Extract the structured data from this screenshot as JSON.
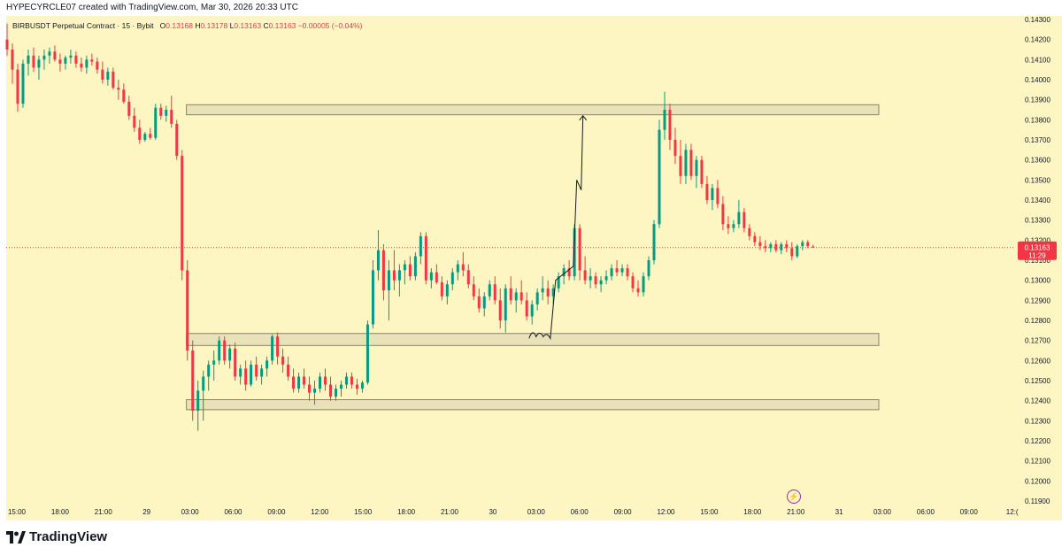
{
  "header": {
    "credit": "HYPECYRCLE07 created with TradingView.com, Mar 30, 2026 20:33 UTC"
  },
  "legend": {
    "symbol": "BIRBUSDT Perpetual Contract · 15 · Bybit",
    "o_label": "O",
    "o": "0.13168",
    "h_label": "H",
    "h": "0.13178",
    "l_label": "L",
    "l": "0.13163",
    "c_label": "C",
    "c": "0.13163",
    "change": "−0.00005 (−0.04%)"
  },
  "price_tag": {
    "price": "0.13163",
    "countdown": "11:29"
  },
  "footer": {
    "brand": "TradingView"
  },
  "colors": {
    "up": "#089981",
    "down": "#f23645",
    "zone_fill": "#e9e2b9",
    "zone_stroke": "#8a8466",
    "background": "#fdf6c3"
  },
  "chart_data": {
    "type": "candlestick",
    "y_ticks": [
      "0.14300",
      "0.14200",
      "0.14100",
      "0.14000",
      "0.13900",
      "0.13800",
      "0.13700",
      "0.13600",
      "0.13500",
      "0.13400",
      "0.13300",
      "0.13200",
      "0.13100",
      "0.13000",
      "0.12900",
      "0.12800",
      "0.12700",
      "0.12600",
      "0.12500",
      "0.12400",
      "0.12300",
      "0.12200",
      "0.12100",
      "0.12000",
      "0.11900"
    ],
    "ylim": [
      0.119,
      0.143
    ],
    "x_ticks": [
      "15:00",
      "18:00",
      "21:00",
      "29",
      "03:00",
      "06:00",
      "09:00",
      "12:00",
      "15:00",
      "18:00",
      "21:00",
      "30",
      "03:00",
      "06:00",
      "09:00",
      "12:00",
      "15:00",
      "18:00",
      "21:00",
      "31",
      "03:00",
      "06:00",
      "09:00",
      "12:("
    ],
    "current_price": 0.13163,
    "zones": [
      {
        "from_x": "03:00 (29)",
        "to_x": "03:00 (31)",
        "low": 0.13825,
        "high": 0.13875
      },
      {
        "from_x": "03:00 (29)",
        "to_x": "03:00 (31)",
        "low": 0.12675,
        "high": 0.12735
      },
      {
        "from_x": "03:00 (29)",
        "to_x": "03:00 (31)",
        "low": 0.12355,
        "high": 0.12405
      }
    ],
    "path_points": [
      [
        0.1271,
        0.12715
      ],
      [
        0.12725,
        0.12735
      ],
      [
        0.1272,
        0.13
      ],
      [
        0.135,
        0.1345
      ],
      [
        0.1382,
        0.1382
      ]
    ],
    "candles": [
      [
        0.142,
        0.1428,
        0.1412,
        0.1415
      ],
      [
        0.1415,
        0.1418,
        0.1398,
        0.1405
      ],
      [
        0.1405,
        0.1408,
        0.1384,
        0.1388
      ],
      [
        0.1388,
        0.141,
        0.1386,
        0.1408
      ],
      [
        0.1408,
        0.1415,
        0.1402,
        0.1412
      ],
      [
        0.1412,
        0.1416,
        0.1404,
        0.1406
      ],
      [
        0.1406,
        0.1412,
        0.14,
        0.141
      ],
      [
        0.141,
        0.1415,
        0.1405,
        0.1412
      ],
      [
        0.1412,
        0.1416,
        0.1408,
        0.1414
      ],
      [
        0.1414,
        0.1417,
        0.1409,
        0.141
      ],
      [
        0.141,
        0.1413,
        0.1404,
        0.1408
      ],
      [
        0.1408,
        0.1412,
        0.1405,
        0.1411
      ],
      [
        0.1411,
        0.1415,
        0.1408,
        0.1412
      ],
      [
        0.1412,
        0.1414,
        0.1406,
        0.1408
      ],
      [
        0.1408,
        0.1411,
        0.1404,
        0.1406
      ],
      [
        0.1406,
        0.1412,
        0.1403,
        0.141
      ],
      [
        0.141,
        0.1413,
        0.1407,
        0.1409
      ],
      [
        0.1409,
        0.1411,
        0.1403,
        0.1405
      ],
      [
        0.1405,
        0.1409,
        0.1398,
        0.14
      ],
      [
        0.14,
        0.1406,
        0.1397,
        0.1404
      ],
      [
        0.1404,
        0.1406,
        0.1395,
        0.1396
      ],
      [
        0.1396,
        0.14,
        0.139,
        0.1395
      ],
      [
        0.1395,
        0.1398,
        0.1388,
        0.1389
      ],
      [
        0.1389,
        0.1392,
        0.138,
        0.1382
      ],
      [
        0.1382,
        0.1386,
        0.1374,
        0.1376
      ],
      [
        0.1376,
        0.138,
        0.1368,
        0.137
      ],
      [
        0.137,
        0.1374,
        0.1369,
        0.1373
      ],
      [
        0.1373,
        0.1376,
        0.137,
        0.1371
      ],
      [
        0.1371,
        0.1388,
        0.137,
        0.1386
      ],
      [
        0.1386,
        0.1388,
        0.138,
        0.1382
      ],
      [
        0.1382,
        0.1387,
        0.1379,
        0.1385
      ],
      [
        0.1385,
        0.1392,
        0.1376,
        0.1378
      ],
      [
        0.1378,
        0.138,
        0.136,
        0.1362
      ],
      [
        0.1362,
        0.1365,
        0.13,
        0.1305
      ],
      [
        0.1305,
        0.131,
        0.126,
        0.1265
      ],
      [
        0.1265,
        0.127,
        0.123,
        0.1235
      ],
      [
        0.1235,
        0.125,
        0.1225,
        0.1245
      ],
      [
        0.1245,
        0.1255,
        0.123,
        0.1252
      ],
      [
        0.1252,
        0.126,
        0.1245,
        0.1258
      ],
      [
        0.1258,
        0.1265,
        0.125,
        0.126
      ],
      [
        0.126,
        0.1272,
        0.1258,
        0.127
      ],
      [
        0.127,
        0.1272,
        0.1258,
        0.126
      ],
      [
        0.126,
        0.1268,
        0.1256,
        0.1266
      ],
      [
        0.1266,
        0.1269,
        0.125,
        0.1252
      ],
      [
        0.1252,
        0.1258,
        0.1248,
        0.1256
      ],
      [
        0.1256,
        0.126,
        0.1245,
        0.1248
      ],
      [
        0.1248,
        0.126,
        0.1247,
        0.1258
      ],
      [
        0.1258,
        0.1262,
        0.125,
        0.1252
      ],
      [
        0.1252,
        0.1258,
        0.1248,
        0.1256
      ],
      [
        0.1256,
        0.1262,
        0.1252,
        0.126
      ],
      [
        0.126,
        0.1273,
        0.1258,
        0.1272
      ],
      [
        0.1272,
        0.1274,
        0.1258,
        0.1262
      ],
      [
        0.1262,
        0.1266,
        0.1254,
        0.1258
      ],
      [
        0.1258,
        0.1262,
        0.125,
        0.1252
      ],
      [
        0.1252,
        0.1256,
        0.1244,
        0.1246
      ],
      [
        0.1246,
        0.1254,
        0.1244,
        0.1252
      ],
      [
        0.1252,
        0.1256,
        0.1246,
        0.1248
      ],
      [
        0.1248,
        0.1252,
        0.124,
        0.1244
      ],
      [
        0.1244,
        0.125,
        0.1238,
        0.1246
      ],
      [
        0.1246,
        0.1254,
        0.1244,
        0.1252
      ],
      [
        0.1252,
        0.1256,
        0.1245,
        0.1248
      ],
      [
        0.1248,
        0.1252,
        0.124,
        0.1242
      ],
      [
        0.1242,
        0.1248,
        0.124,
        0.1246
      ],
      [
        0.1246,
        0.125,
        0.1242,
        0.1248
      ],
      [
        0.1248,
        0.1254,
        0.1246,
        0.1252
      ],
      [
        0.1252,
        0.1254,
        0.1246,
        0.1248
      ],
      [
        0.1248,
        0.1251,
        0.1243,
        0.1246
      ],
      [
        0.1246,
        0.125,
        0.1244,
        0.1249
      ],
      [
        0.1249,
        0.128,
        0.1248,
        0.1278
      ],
      [
        0.1278,
        0.131,
        0.1276,
        0.1305
      ],
      [
        0.1305,
        0.1325,
        0.13,
        0.1315
      ],
      [
        0.1315,
        0.1318,
        0.129,
        0.1295
      ],
      [
        0.1295,
        0.131,
        0.128,
        0.1305
      ],
      [
        0.1305,
        0.1315,
        0.1295,
        0.13
      ],
      [
        0.13,
        0.1308,
        0.1292,
        0.1305
      ],
      [
        0.1305,
        0.131,
        0.1298,
        0.1308
      ],
      [
        0.1308,
        0.1312,
        0.13,
        0.1302
      ],
      [
        0.1302,
        0.1314,
        0.13,
        0.1312
      ],
      [
        0.1312,
        0.1324,
        0.1308,
        0.1322
      ],
      [
        0.1322,
        0.1324,
        0.1298,
        0.13
      ],
      [
        0.13,
        0.1306,
        0.1296,
        0.1304
      ],
      [
        0.1304,
        0.1308,
        0.1298,
        0.1299
      ],
      [
        0.1299,
        0.1302,
        0.129,
        0.1292
      ],
      [
        0.1292,
        0.13,
        0.1288,
        0.1298
      ],
      [
        0.1298,
        0.1306,
        0.1295,
        0.1304
      ],
      [
        0.1304,
        0.131,
        0.13,
        0.1308
      ],
      [
        0.1308,
        0.1314,
        0.1302,
        0.1305
      ],
      [
        0.1305,
        0.1308,
        0.1296,
        0.1298
      ],
      [
        0.1298,
        0.1302,
        0.129,
        0.1292
      ],
      [
        0.1292,
        0.1296,
        0.1284,
        0.1286
      ],
      [
        0.1286,
        0.1294,
        0.1282,
        0.1292
      ],
      [
        0.1292,
        0.13,
        0.129,
        0.1298
      ],
      [
        0.1298,
        0.1302,
        0.1288,
        0.129
      ],
      [
        0.129,
        0.1296,
        0.1276,
        0.128
      ],
      [
        0.128,
        0.1298,
        0.1274,
        0.1296
      ],
      [
        0.1296,
        0.1302,
        0.1288,
        0.129
      ],
      [
        0.129,
        0.1296,
        0.1284,
        0.1294
      ],
      [
        0.1294,
        0.13,
        0.1288,
        0.129
      ],
      [
        0.129,
        0.1294,
        0.128,
        0.1282
      ],
      [
        0.1282,
        0.129,
        0.1278,
        0.1288
      ],
      [
        0.1288,
        0.1296,
        0.1285,
        0.1294
      ],
      [
        0.1294,
        0.1302,
        0.129,
        0.1296
      ],
      [
        0.1296,
        0.13,
        0.1288,
        0.1292
      ],
      [
        0.1292,
        0.1298,
        0.1288,
        0.1296
      ],
      [
        0.1296,
        0.1304,
        0.1294,
        0.1302
      ],
      [
        0.1302,
        0.1308,
        0.1298,
        0.1306
      ],
      [
        0.1306,
        0.131,
        0.13,
        0.1302
      ],
      [
        0.1302,
        0.1328,
        0.13,
        0.1326
      ],
      [
        0.1326,
        0.1328,
        0.13,
        0.1305
      ],
      [
        0.1305,
        0.1312,
        0.1298,
        0.13
      ],
      [
        0.13,
        0.1306,
        0.1296,
        0.1302
      ],
      [
        0.1302,
        0.1304,
        0.1296,
        0.1298
      ],
      [
        0.1298,
        0.1302,
        0.1294,
        0.13
      ],
      [
        0.13,
        0.1305,
        0.1298,
        0.1302
      ],
      [
        0.1302,
        0.1308,
        0.13,
        0.1306
      ],
      [
        0.1306,
        0.131,
        0.1302,
        0.1304
      ],
      [
        0.1304,
        0.1308,
        0.1302,
        0.1306
      ],
      [
        0.1306,
        0.1308,
        0.13,
        0.1302
      ],
      [
        0.1302,
        0.1304,
        0.1294,
        0.1296
      ],
      [
        0.1296,
        0.13,
        0.1292,
        0.1294
      ],
      [
        0.1294,
        0.1304,
        0.1292,
        0.1302
      ],
      [
        0.1302,
        0.1312,
        0.13,
        0.131
      ],
      [
        0.131,
        0.133,
        0.1308,
        0.1328
      ],
      [
        0.1328,
        0.138,
        0.1326,
        0.1375
      ],
      [
        0.1375,
        0.1394,
        0.137,
        0.1385
      ],
      [
        0.1385,
        0.1388,
        0.1365,
        0.137
      ],
      [
        0.137,
        0.1376,
        0.1358,
        0.1362
      ],
      [
        0.1362,
        0.137,
        0.1348,
        0.1352
      ],
      [
        0.1352,
        0.1368,
        0.1348,
        0.1365
      ],
      [
        0.1365,
        0.1368,
        0.135,
        0.1352
      ],
      [
        0.1352,
        0.1362,
        0.1346,
        0.136
      ],
      [
        0.136,
        0.1362,
        0.1346,
        0.1348
      ],
      [
        0.1348,
        0.1352,
        0.1338,
        0.134
      ],
      [
        0.134,
        0.1348,
        0.1335,
        0.1346
      ],
      [
        0.1346,
        0.135,
        0.1336,
        0.1338
      ],
      [
        0.1338,
        0.1342,
        0.1325,
        0.1328
      ],
      [
        0.1328,
        0.1332,
        0.1323,
        0.1326
      ],
      [
        0.1326,
        0.133,
        0.1324,
        0.1328
      ],
      [
        0.1328,
        0.134,
        0.1326,
        0.1334
      ],
      [
        0.1334,
        0.1336,
        0.1324,
        0.1326
      ],
      [
        0.1326,
        0.1328,
        0.132,
        0.1322
      ],
      [
        0.1322,
        0.1324,
        0.1317,
        0.1319
      ],
      [
        0.1319,
        0.1322,
        0.1315,
        0.1317
      ],
      [
        0.1317,
        0.132,
        0.1314,
        0.1316
      ],
      [
        0.1316,
        0.1319,
        0.1314,
        0.1318
      ],
      [
        0.1318,
        0.132,
        0.1314,
        0.1315
      ],
      [
        0.1315,
        0.1319,
        0.1313,
        0.1318
      ],
      [
        0.1318,
        0.132,
        0.1314,
        0.1316
      ],
      [
        0.1316,
        0.1319,
        0.131,
        0.1312
      ],
      [
        0.1312,
        0.1318,
        0.1311,
        0.1317
      ],
      [
        0.1317,
        0.132,
        0.1315,
        0.1319
      ],
      [
        0.1319,
        0.132,
        0.1316,
        0.1317
      ],
      [
        0.13168,
        0.13178,
        0.13163,
        0.13163
      ]
    ]
  }
}
